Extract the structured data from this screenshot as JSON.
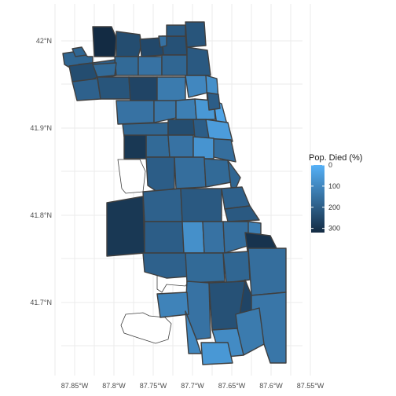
{
  "chart_data": {
    "type": "choropleth-map",
    "x_ticks": [
      "87.85°W",
      "87.8°W",
      "87.75°W",
      "87.7°W",
      "87.65°W",
      "87.6°W",
      "87.55°W"
    ],
    "y_ticks": [
      "42°N",
      "41.9°N",
      "41.8°N",
      "41.7°N"
    ],
    "legend": {
      "title": "Pop. Died (%)",
      "placement": "right",
      "ticks": [
        "0",
        "100",
        "200",
        "300"
      ],
      "scale_min": 0,
      "scale_max": 320,
      "low_color": "#56B1F7",
      "high_color": "#132B43"
    },
    "grid": true,
    "area_values": [
      180,
      320,
      240,
      250,
      230,
      220,
      210,
      240,
      200,
      170,
      150,
      180,
      210,
      190,
      220,
      260,
      130,
      100,
      80,
      150,
      140,
      120,
      60,
      30,
      50,
      180,
      240,
      200,
      160,
      170,
      290,
      150,
      70,
      200,
      160,
      170,
      180,
      190,
      210,
      190,
      210,
      290,
      200,
      80,
      150,
      160,
      120,
      300,
      190,
      170,
      180,
      160,
      150,
      230,
      260,
      140,
      130,
      110,
      100,
      90,
      60,
      170,
      150,
      200,
      180
    ]
  }
}
